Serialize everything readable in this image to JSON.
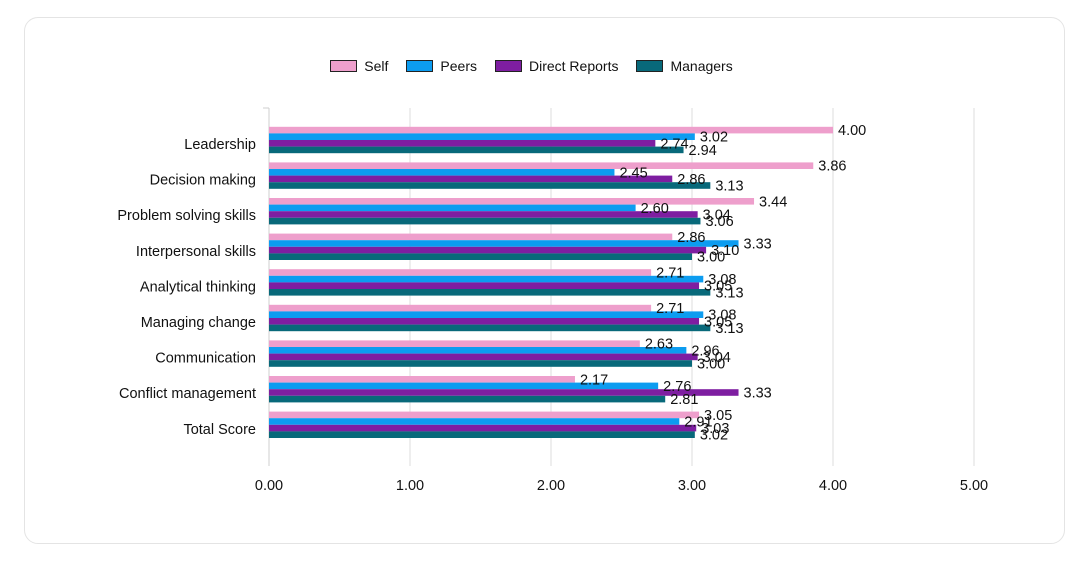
{
  "chart_data": {
    "type": "bar",
    "orientation": "horizontal",
    "title": "",
    "xlabel": "",
    "ylabel": "",
    "xlim": [
      0,
      5
    ],
    "xticks": [
      "0.00",
      "1.00",
      "2.00",
      "3.00",
      "4.00",
      "5.00"
    ],
    "legend_position": "top-center",
    "grid": true,
    "categories": [
      "Leadership",
      "Decision making",
      "Problem solving skills",
      "Interpersonal skills",
      "Analytical thinking",
      "Managing change",
      "Communication",
      "Conflict management",
      "Total Score"
    ],
    "series": [
      {
        "name": "Self",
        "color": "#ee9fcc",
        "values": [
          4.0,
          3.86,
          3.44,
          2.86,
          2.71,
          2.71,
          2.63,
          2.17,
          3.05
        ],
        "labels": [
          "4.00",
          "3.86",
          "3.44",
          "2.86",
          "2.71",
          "2.71",
          "2.63",
          "2.17",
          "3.05"
        ]
      },
      {
        "name": "Peers",
        "color": "#0c9cf0",
        "values": [
          3.02,
          2.45,
          2.6,
          3.33,
          3.08,
          3.08,
          2.96,
          2.76,
          2.91
        ],
        "labels": [
          "3.02",
          "2.45",
          "2.60",
          "3.33",
          "3.08",
          "3.08",
          "2.96",
          "2.76",
          "2.91"
        ]
      },
      {
        "name": "Direct Reports",
        "color": "#7e1ea1",
        "values": [
          2.74,
          2.86,
          3.04,
          3.1,
          3.05,
          3.05,
          3.04,
          3.33,
          3.03
        ],
        "labels": [
          "2.74",
          "2.86",
          "3.04",
          "3.10",
          "3.05",
          "3.05",
          "3.04",
          "3.33",
          "3.03"
        ]
      },
      {
        "name": "Managers",
        "color": "#08697a",
        "values": [
          2.94,
          3.13,
          3.06,
          3.0,
          3.13,
          3.13,
          3.0,
          2.81,
          3.02
        ],
        "labels": [
          "2.94",
          "3.13",
          "3.06",
          "3.00",
          "3.13",
          "3.13",
          "3.00",
          "2.81",
          "3.02"
        ]
      }
    ]
  }
}
